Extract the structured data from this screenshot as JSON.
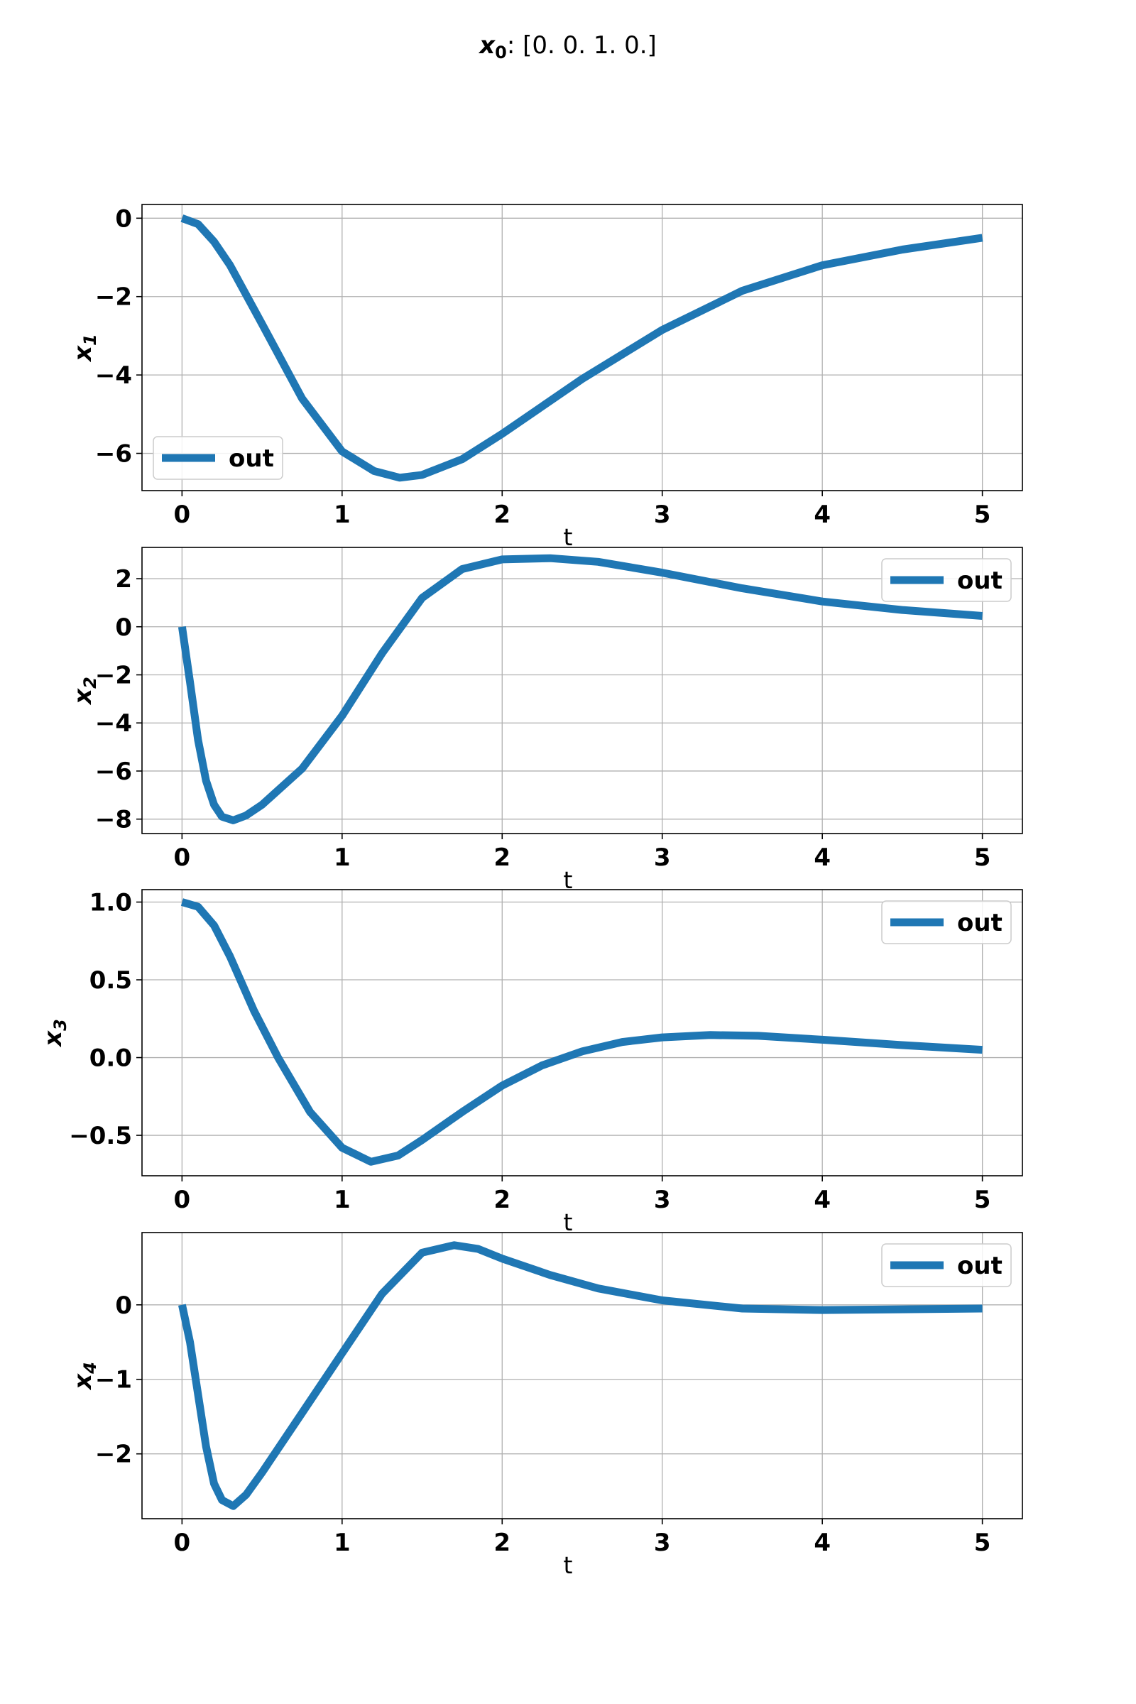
{
  "figure": {
    "title_var": "x",
    "title_sub": "0",
    "title_text": ": [0. 0. 1. 0.]"
  },
  "colors": {
    "line": "#1f77b4",
    "grid": "#b0b0b0",
    "frame": "#000000",
    "legend_border": "#cccccc"
  },
  "chart_data": [
    {
      "type": "line",
      "ylabel_var": "x",
      "ylabel_sub": "1",
      "xlabel": "t",
      "xlim": [
        -0.25,
        5.25
      ],
      "ylim": [
        -6.95,
        0.35
      ],
      "xticks": [
        0,
        1,
        2,
        3,
        4,
        5
      ],
      "xtick_labels": [
        "0",
        "1",
        "2",
        "3",
        "4",
        "5"
      ],
      "yticks": [
        0,
        -2,
        -4,
        -6
      ],
      "ytick_labels": [
        "0",
        "−2",
        "−4",
        "−6"
      ],
      "grid": true,
      "legend": "lower-left",
      "series": [
        {
          "name": "out",
          "x": [
            0,
            0.1,
            0.2,
            0.3,
            0.5,
            0.75,
            1.0,
            1.2,
            1.36,
            1.5,
            1.75,
            2.0,
            2.5,
            3.0,
            3.5,
            4.0,
            4.5,
            5.0
          ],
          "y": [
            0,
            -0.15,
            -0.6,
            -1.2,
            -2.7,
            -4.6,
            -5.95,
            -6.45,
            -6.62,
            -6.55,
            -6.15,
            -5.5,
            -4.1,
            -2.85,
            -1.85,
            -1.2,
            -0.8,
            -0.5
          ]
        }
      ]
    },
    {
      "type": "line",
      "ylabel_var": "x",
      "ylabel_sub": "2",
      "xlabel": "t",
      "xlim": [
        -0.25,
        5.25
      ],
      "ylim": [
        -8.6,
        3.3
      ],
      "xticks": [
        0,
        1,
        2,
        3,
        4,
        5
      ],
      "xtick_labels": [
        "0",
        "1",
        "2",
        "3",
        "4",
        "5"
      ],
      "yticks": [
        2,
        0,
        -2,
        -4,
        -6,
        -8
      ],
      "ytick_labels": [
        "2",
        "0",
        "−2",
        "−4",
        "−6",
        "−8"
      ],
      "grid": true,
      "legend": "upper-right",
      "series": [
        {
          "name": "out",
          "x": [
            0,
            0.05,
            0.1,
            0.15,
            0.2,
            0.25,
            0.32,
            0.4,
            0.5,
            0.75,
            1.0,
            1.25,
            1.5,
            1.75,
            2.0,
            2.3,
            2.6,
            3.0,
            3.5,
            4.0,
            4.5,
            5.0
          ],
          "y": [
            0,
            -2.3,
            -4.7,
            -6.4,
            -7.4,
            -7.9,
            -8.05,
            -7.85,
            -7.4,
            -5.9,
            -3.7,
            -1.1,
            1.2,
            2.4,
            2.8,
            2.85,
            2.7,
            2.25,
            1.6,
            1.05,
            0.7,
            0.45
          ]
        }
      ]
    },
    {
      "type": "line",
      "ylabel_var": "x",
      "ylabel_sub": "3",
      "xlabel": "t",
      "xlim": [
        -0.25,
        5.25
      ],
      "ylim": [
        -0.76,
        1.08
      ],
      "xticks": [
        0,
        1,
        2,
        3,
        4,
        5
      ],
      "xtick_labels": [
        "0",
        "1",
        "2",
        "3",
        "4",
        "5"
      ],
      "yticks": [
        1.0,
        0.5,
        0.0,
        -0.5
      ],
      "ytick_labels": [
        "1.0",
        "0.5",
        "0.0",
        "−0.5"
      ],
      "grid": true,
      "legend": "upper-right",
      "series": [
        {
          "name": "out",
          "x": [
            0,
            0.1,
            0.2,
            0.3,
            0.45,
            0.6,
            0.8,
            1.0,
            1.18,
            1.35,
            1.5,
            1.75,
            2.0,
            2.25,
            2.5,
            2.75,
            3.0,
            3.3,
            3.6,
            4.0,
            4.5,
            5.0
          ],
          "y": [
            1.0,
            0.97,
            0.85,
            0.65,
            0.3,
            0.0,
            -0.35,
            -0.58,
            -0.67,
            -0.63,
            -0.53,
            -0.35,
            -0.18,
            -0.05,
            0.04,
            0.1,
            0.13,
            0.145,
            0.14,
            0.115,
            0.08,
            0.05
          ]
        }
      ]
    },
    {
      "type": "line",
      "ylabel_var": "x",
      "ylabel_sub": "4",
      "xlabel": "t",
      "xlim": [
        -0.25,
        5.25
      ],
      "ylim": [
        -2.87,
        0.97
      ],
      "xticks": [
        0,
        1,
        2,
        3,
        4,
        5
      ],
      "xtick_labels": [
        "0",
        "1",
        "2",
        "3",
        "4",
        "5"
      ],
      "yticks": [
        0,
        -1,
        -2
      ],
      "ytick_labels": [
        "0",
        "−1",
        "−2"
      ],
      "grid": true,
      "legend": "upper-right",
      "series": [
        {
          "name": "out",
          "x": [
            0,
            0.05,
            0.1,
            0.15,
            0.2,
            0.25,
            0.32,
            0.4,
            0.5,
            0.75,
            1.0,
            1.25,
            1.5,
            1.7,
            1.85,
            2.0,
            2.3,
            2.6,
            3.0,
            3.5,
            4.0,
            4.5,
            5.0
          ],
          "y": [
            0,
            -0.5,
            -1.2,
            -1.9,
            -2.4,
            -2.62,
            -2.7,
            -2.55,
            -2.25,
            -1.45,
            -0.65,
            0.15,
            0.7,
            0.8,
            0.75,
            0.62,
            0.4,
            0.22,
            0.06,
            -0.05,
            -0.07,
            -0.06,
            -0.05
          ]
        }
      ]
    }
  ]
}
